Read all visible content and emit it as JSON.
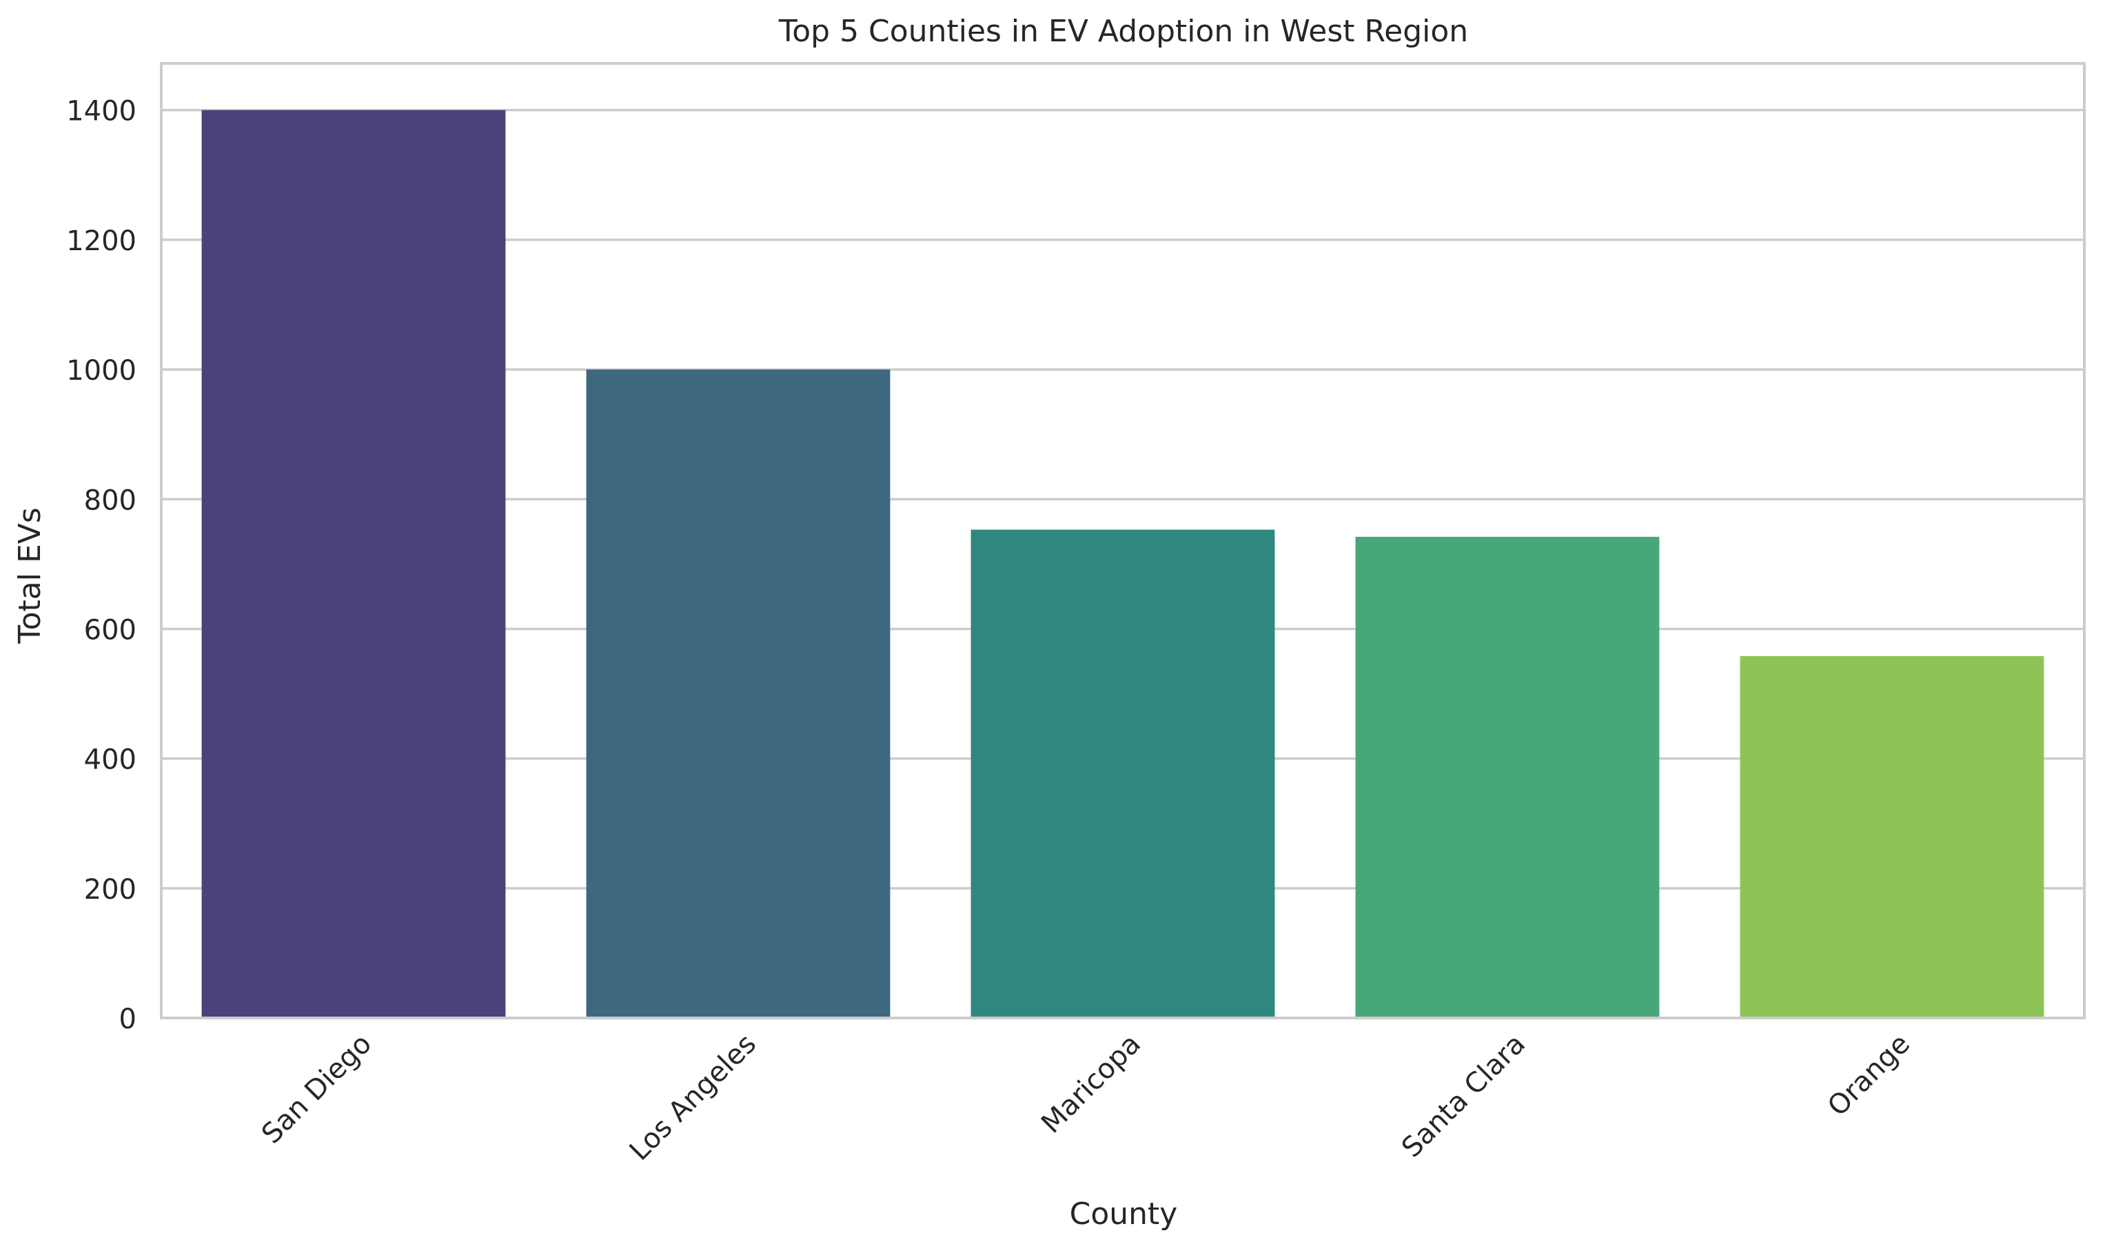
{
  "chart_data": {
    "type": "bar",
    "title": "Top 5 Counties in EV Adoption in West Region",
    "xlabel": "County",
    "ylabel": "Total EVs",
    "categories": [
      "San Diego",
      "Los Angeles",
      "Maricopa",
      "Santa Clara",
      "Orange"
    ],
    "values": [
      1400,
      1000,
      753,
      742,
      558
    ],
    "colors": [
      "#4a4278",
      "#3e6780",
      "#30877f",
      "#47a778",
      "#8ec456"
    ],
    "ylim": [
      0,
      1472
    ],
    "yticks": [
      0,
      200,
      400,
      600,
      800,
      1000,
      1200,
      1400
    ],
    "ytick_labels": [
      "0",
      "200",
      "400",
      "600",
      "800",
      "1000",
      "1200",
      "1400"
    ],
    "grid": "horizontal",
    "grid_color": "#cccccc",
    "axis_color": "#cccccc",
    "xtick_rotation": "45 degrees"
  }
}
